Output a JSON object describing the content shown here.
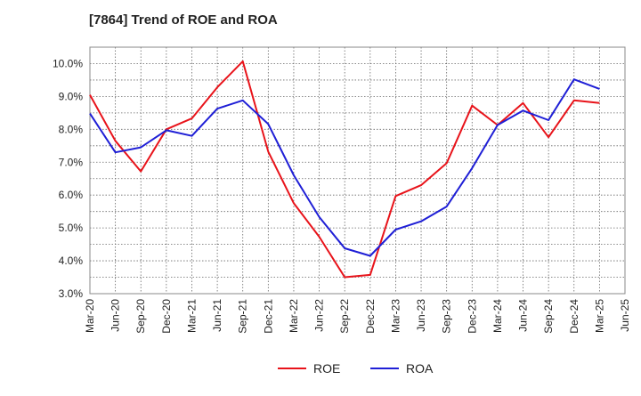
{
  "chart_data": {
    "type": "line",
    "title": "[7864]  Trend of ROE and ROA",
    "xlabel": "",
    "ylabel": "",
    "x": [
      "Mar-20",
      "Jun-20",
      "Sep-20",
      "Dec-20",
      "Mar-21",
      "Jun-21",
      "Sep-21",
      "Dec-21",
      "Mar-22",
      "Jun-22",
      "Sep-22",
      "Dec-22",
      "Mar-23",
      "Jun-23",
      "Sep-23",
      "Dec-23",
      "Mar-24",
      "Jun-24",
      "Sep-24",
      "Dec-24",
      "Mar-25",
      "Jun-25"
    ],
    "ylim": [
      3.0,
      10.5
    ],
    "yticks": [
      3.0,
      4.0,
      5.0,
      6.0,
      7.0,
      8.0,
      9.0,
      10.0
    ],
    "ytick_labels": [
      "3.0%",
      "4.0%",
      "5.0%",
      "6.0%",
      "7.0%",
      "8.0%",
      "9.0%",
      "10.0%"
    ],
    "grid": true,
    "legend_position": "bottom-center",
    "series": [
      {
        "name": "ROE",
        "color": "#e8131a",
        "values": [
          9.05,
          7.65,
          6.72,
          8.0,
          8.33,
          9.28,
          10.07,
          7.32,
          5.75,
          4.73,
          3.5,
          3.57,
          5.97,
          6.3,
          6.97,
          8.72,
          8.13,
          8.8,
          7.76,
          8.88,
          8.8,
          null
        ]
      },
      {
        "name": "ROA",
        "color": "#1f1fd6",
        "values": [
          8.48,
          7.3,
          7.45,
          7.97,
          7.8,
          8.63,
          8.88,
          8.16,
          6.6,
          5.33,
          4.38,
          4.15,
          4.95,
          5.2,
          5.65,
          6.82,
          8.13,
          8.57,
          8.28,
          9.52,
          9.23,
          null
        ]
      }
    ]
  }
}
